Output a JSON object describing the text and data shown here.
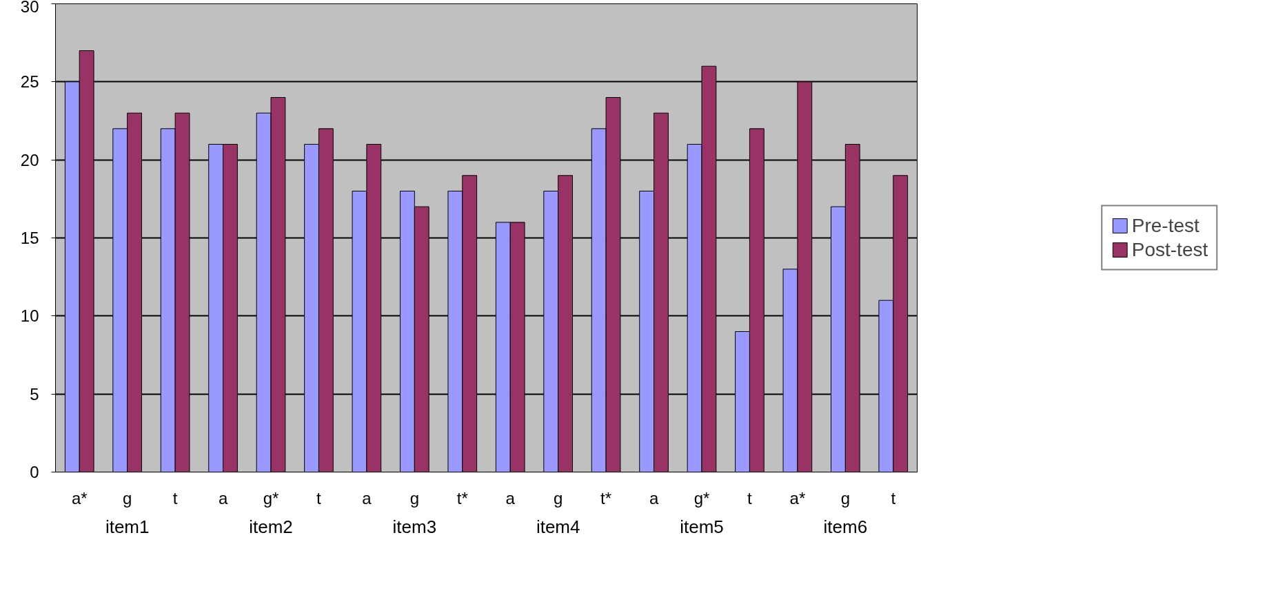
{
  "chart_data": {
    "type": "bar",
    "categories": [
      "a*",
      "g",
      "t",
      "a",
      "g*",
      "t",
      "a",
      "g",
      "t*",
      "a",
      "g",
      "t*",
      "a",
      "g*",
      "t",
      "a*",
      "g",
      "t"
    ],
    "annotations": [
      "item1",
      "item2",
      "item3",
      "item4",
      "item5",
      "item6"
    ],
    "series": [
      {
        "name": "Pre-test",
        "color": "#9999ff",
        "values": [
          25,
          22,
          22,
          21,
          23,
          21,
          18,
          18,
          18,
          16,
          18,
          22,
          18,
          21,
          9,
          13,
          17,
          11
        ]
      },
      {
        "name": "Post-test",
        "color": "#993366",
        "values": [
          27,
          23,
          23,
          21,
          24,
          22,
          21,
          17,
          19,
          16,
          19,
          24,
          23,
          26,
          22,
          25,
          21,
          19
        ]
      }
    ],
    "ylim": [
      0,
      30
    ],
    "yticks": [
      0,
      5,
      10,
      15,
      20,
      25,
      30
    ],
    "grid": "y",
    "legend": "right"
  }
}
